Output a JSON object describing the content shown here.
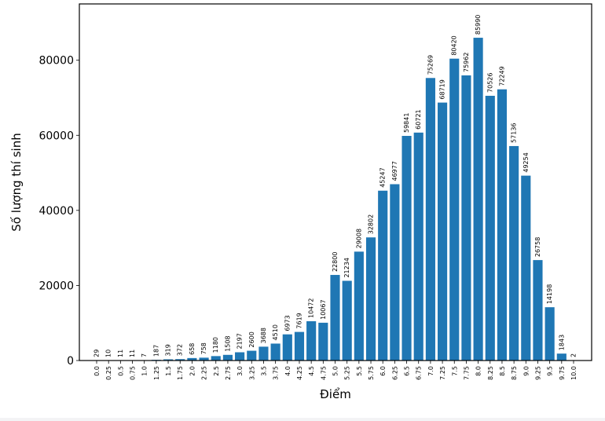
{
  "chart_data": {
    "type": "bar",
    "title": "",
    "xlabel": "Điểm",
    "ylabel": "Số lượng thí sinh",
    "ylim": [
      0,
      95000
    ],
    "yticks": [
      0,
      20000,
      40000,
      60000,
      80000
    ],
    "grid": false,
    "bar_color": "#1f77b4",
    "categories": [
      "0.0",
      "0.25",
      "0.5",
      "0.75",
      "1.0",
      "1.25",
      "1.5",
      "1.75",
      "2.0",
      "2.25",
      "2.5",
      "2.75",
      "3.0",
      "3.25",
      "3.5",
      "3.75",
      "4.0",
      "4.25",
      "4.5",
      "4.75",
      "5.0",
      "5.25",
      "5.5",
      "5.75",
      "6.0",
      "6.25",
      "6.5",
      "6.75",
      "7.0",
      "7.25",
      "7.5",
      "7.75",
      "8.0",
      "8.25",
      "8.5",
      "8.75",
      "9.0",
      "9.25",
      "9.5",
      "9.75",
      "10.0"
    ],
    "values": [
      29,
      10,
      11,
      11,
      7,
      187,
      319,
      372,
      658,
      758,
      1180,
      1508,
      2197,
      2600,
      3688,
      4510,
      6973,
      7619,
      10472,
      10067,
      22800,
      21234,
      29008,
      32802,
      45247,
      46977,
      59841,
      60721,
      75269,
      68719,
      80420,
      75962,
      85990,
      70526,
      72249,
      57136,
      49254,
      26758,
      14198,
      1843,
      2
    ]
  }
}
